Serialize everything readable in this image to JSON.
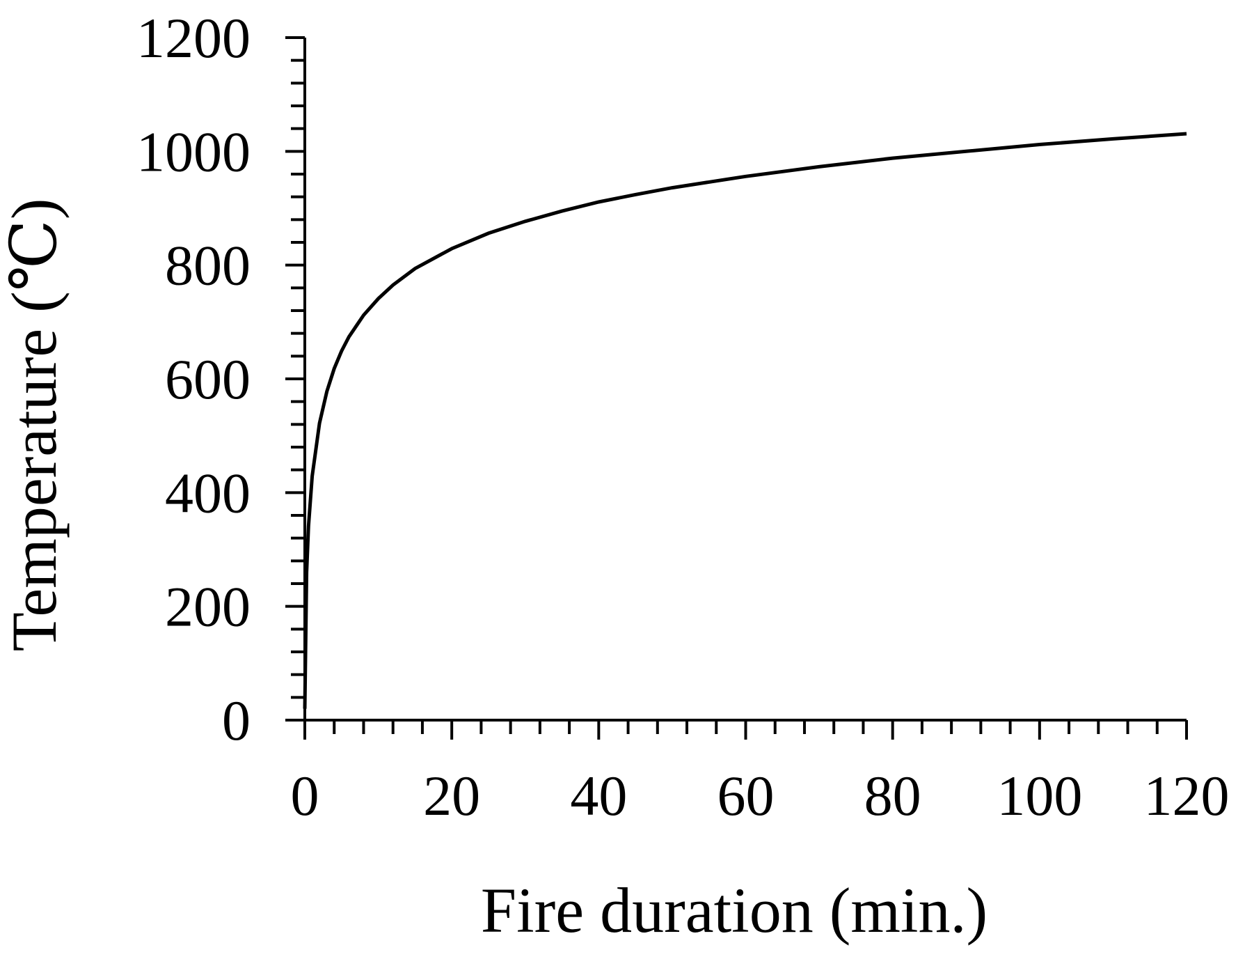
{
  "chart_data": {
    "type": "line",
    "xlabel": "Fire duration (min.)",
    "ylabel": "Temperature (℃)",
    "xlim": [
      0,
      120
    ],
    "ylim": [
      0,
      1200
    ],
    "x_ticks": [
      0,
      20,
      40,
      60,
      80,
      100,
      120
    ],
    "y_ticks": [
      0,
      200,
      400,
      600,
      800,
      1000,
      1200
    ],
    "x_tick_labels": [
      "0",
      "20",
      "40",
      "60",
      "80",
      "100",
      "120"
    ],
    "y_tick_labels": [
      "0",
      "200",
      "400",
      "600",
      "800",
      "1000",
      "1200"
    ],
    "x_minor_step": 4,
    "y_minor_step": 40,
    "grid": false,
    "series": [
      {
        "x": [
          0,
          0.25,
          0.5,
          1,
          2,
          3,
          4,
          5,
          6,
          8,
          10,
          12,
          15,
          20,
          25,
          30,
          35,
          40,
          45,
          50,
          60,
          70,
          80,
          90,
          100,
          110,
          120
        ],
        "values": [
          20,
          260,
          341,
          429,
          522,
          578,
          618,
          649,
          674,
          712,
          741,
          765,
          794,
          829,
          856,
          877,
          895,
          911,
          924,
          936,
          956,
          973,
          988,
          1000,
          1012,
          1022,
          1031
        ]
      }
    ]
  }
}
